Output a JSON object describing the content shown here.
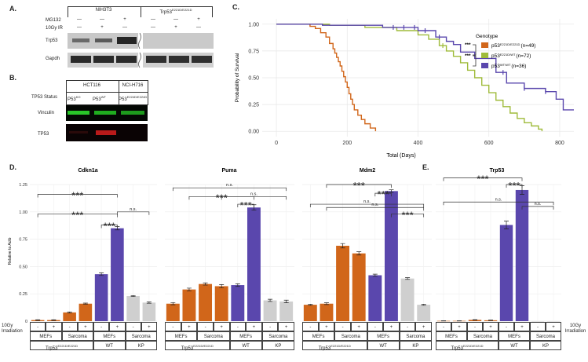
{
  "panel_labels": {
    "A": "A.",
    "B": "B.",
    "C": "C.",
    "D": "D.",
    "E": "E."
  },
  "panel_a": {
    "group_left": "NIH3T3",
    "group_right": "Trp53",
    "group_right_sup": "E221D/E221D",
    "row_labels": [
      "MG132",
      "10Gy IR",
      "Trp53",
      "Gapdh"
    ],
    "mg132": [
      "—",
      "—",
      "+",
      "—",
      "—",
      "+"
    ],
    "ir": [
      "—",
      "+",
      "—",
      "—",
      "+",
      "—"
    ]
  },
  "panel_b": {
    "col1": "HCT116",
    "col2": "NCI-H716",
    "status_label": "TP53 Status",
    "status": [
      {
        "base": "P53",
        "sup": "KO"
      },
      {
        "base": "P53",
        "sup": "WT"
      },
      {
        "base": "P53",
        "sup": "E224D/E224D"
      }
    ],
    "row_labels": [
      "Vinculin",
      "TP53"
    ]
  },
  "chart_data": [
    {
      "type": "line",
      "id": "survival",
      "xlabel": "Total (Days)",
      "ylabel": "Probability of Survival",
      "xlim": [
        -40,
        840
      ],
      "ylim": [
        -0.05,
        1.05
      ],
      "xticks": [
        0,
        200,
        400,
        600,
        800
      ],
      "yticks": [
        0.0,
        0.25,
        0.5,
        0.75,
        1.0
      ],
      "ytick_labels": [
        "0.00",
        "0.25",
        "0.50",
        "0.75",
        "1.00"
      ],
      "legend_title": "Genotype",
      "significance": [
        "***",
        "***"
      ],
      "series": [
        {
          "name": "p53",
          "sup": "E221D/E221D",
          "n": "(n=49)",
          "color": "#d1661a",
          "x": [
            0,
            95,
            110,
            125,
            140,
            150,
            160,
            165,
            170,
            175,
            180,
            185,
            190,
            195,
            200,
            205,
            210,
            215,
            220,
            230,
            240,
            250,
            265,
            280
          ],
          "y": [
            1.0,
            0.98,
            0.96,
            0.92,
            0.88,
            0.82,
            0.77,
            0.73,
            0.69,
            0.65,
            0.61,
            0.56,
            0.51,
            0.46,
            0.41,
            0.35,
            0.3,
            0.25,
            0.2,
            0.15,
            0.11,
            0.07,
            0.03,
            0.0
          ]
        },
        {
          "name": "p53",
          "sup": "E221D/WT",
          "n": "(n=72)",
          "color": "#9fbb3a",
          "x": [
            0,
            150,
            250,
            340,
            400,
            430,
            460,
            480,
            500,
            520,
            540,
            560,
            580,
            600,
            620,
            640,
            660,
            680,
            700,
            720,
            740,
            750
          ],
          "y": [
            1.0,
            0.99,
            0.97,
            0.94,
            0.9,
            0.86,
            0.8,
            0.75,
            0.7,
            0.64,
            0.57,
            0.5,
            0.43,
            0.36,
            0.29,
            0.23,
            0.17,
            0.12,
            0.08,
            0.05,
            0.02,
            0.0
          ]
        },
        {
          "name": "p53",
          "sup": "WT/WT",
          "n": "(n=36)",
          "color": "#5a47ad",
          "x": [
            0,
            130,
            300,
            400,
            450,
            480,
            500,
            520,
            560,
            620,
            650,
            700,
            760,
            790,
            810,
            840
          ],
          "y": [
            1.0,
            0.99,
            0.97,
            0.94,
            0.88,
            0.84,
            0.81,
            0.74,
            0.68,
            0.55,
            0.45,
            0.4,
            0.37,
            0.3,
            0.2,
            0.2
          ]
        }
      ]
    },
    {
      "type": "bar",
      "id": "cdkn1a",
      "title": "Cdkn1a",
      "ylabel": "Relative to Actb",
      "ylim": [
        0,
        1.25
      ],
      "yticks": [
        0,
        0.25,
        0.5,
        0.75,
        1.0,
        1.25
      ],
      "ytick_labels": [
        "0",
        "0.25",
        "0.50",
        "0.75",
        "1.00",
        "1.25"
      ],
      "categories": [
        "MEFs-",
        "MEFs+",
        "Sarcoma-",
        "Sarcoma+",
        "MEFs-",
        "MEFs+",
        "Sarcoma-",
        "Sarcoma+"
      ],
      "values": [
        0.01,
        0.01,
        0.08,
        0.16,
        0.43,
        0.85,
        0.23,
        0.17
      ],
      "errors": [
        0.003,
        0.003,
        0.005,
        0.005,
        0.012,
        0.015,
        0.005,
        0.006
      ],
      "colors": [
        "#d1661a",
        "#d1661a",
        "#d1661a",
        "#d1661a",
        "#5a47ad",
        "#5a47ad",
        "#cfcfcf",
        "#cfcfcf"
      ],
      "brackets": [
        {
          "from": 0,
          "to": 5,
          "y": 1.16,
          "label": "***"
        },
        {
          "from": 0,
          "to": 5,
          "y": 0.98,
          "label": "***"
        },
        {
          "from": 4,
          "to": 5,
          "y": 0.88,
          "label": "***"
        },
        {
          "from": 5,
          "to": 7,
          "y": 1.0,
          "label": "n.s."
        }
      ]
    },
    {
      "type": "bar",
      "id": "puma",
      "title": "Puma",
      "ylim": [
        0,
        1.25
      ],
      "yticks": [
        0,
        0.25,
        0.5,
        0.75,
        1.0,
        1.25
      ],
      "categories": [
        "MEFs-",
        "MEFs+",
        "Sarcoma-",
        "Sarcoma+",
        "MEFs-",
        "MEFs+",
        "Sarcoma-",
        "Sarcoma+"
      ],
      "values": [
        0.16,
        0.29,
        0.34,
        0.32,
        0.33,
        1.04,
        0.19,
        0.18
      ],
      "errors": [
        0.01,
        0.012,
        0.01,
        0.015,
        0.012,
        0.025,
        0.01,
        0.012
      ],
      "colors": [
        "#d1661a",
        "#d1661a",
        "#d1661a",
        "#d1661a",
        "#5a47ad",
        "#5a47ad",
        "#cfcfcf",
        "#cfcfcf"
      ],
      "brackets": [
        {
          "from": 0,
          "to": 7,
          "y": 1.22,
          "label": "n.s."
        },
        {
          "from": 1,
          "to": 5,
          "y": 1.14,
          "label": "***"
        },
        {
          "from": 4,
          "to": 5,
          "y": 1.07,
          "label": "***"
        },
        {
          "from": 3,
          "to": 7,
          "y": 1.14,
          "label": "n.s."
        }
      ]
    },
    {
      "type": "bar",
      "id": "mdm2",
      "title": "Mdm2",
      "ylim": [
        0,
        1.25
      ],
      "yticks": [
        0,
        0.25,
        0.5,
        0.75,
        1.0,
        1.25
      ],
      "categories": [
        "MEFs-",
        "MEFs+",
        "Sarcoma-",
        "Sarcoma+",
        "MEFs-",
        "MEFs+",
        "Sarcoma-",
        "Sarcoma+"
      ],
      "values": [
        0.15,
        0.16,
        0.69,
        0.62,
        0.42,
        1.19,
        0.39,
        0.15
      ],
      "errors": [
        0.005,
        0.008,
        0.02,
        0.015,
        0.01,
        0.012,
        0.008,
        0.005
      ],
      "colors": [
        "#d1661a",
        "#d1661a",
        "#d1661a",
        "#d1661a",
        "#5a47ad",
        "#5a47ad",
        "#cfcfcf",
        "#cfcfcf"
      ],
      "brackets": [
        {
          "from": 1,
          "to": 5,
          "y": 1.25,
          "label": "***"
        },
        {
          "from": 4,
          "to": 5,
          "y": 1.17,
          "label": "***"
        },
        {
          "from": 0,
          "to": 7,
          "y": 1.07,
          "label": "n.s."
        },
        {
          "from": 1,
          "to": 7,
          "y": 1.04,
          "label": "n.s."
        },
        {
          "from": 5,
          "to": 7,
          "y": 0.98,
          "label": "***"
        }
      ]
    },
    {
      "type": "bar",
      "id": "trp53",
      "title": "Trp53",
      "ylim": [
        0,
        1.25
      ],
      "yticks": [
        0,
        0.25,
        0.5,
        0.75,
        1.0,
        1.25
      ],
      "categories": [
        "MEFs-",
        "MEFs+",
        "Sarcoma-",
        "Sarcoma+",
        "MEFs-",
        "MEFs+",
        "Sarcoma-",
        "Sarcoma+"
      ],
      "values": [
        0.003,
        0.003,
        0.012,
        0.008,
        0.88,
        1.2,
        0.0,
        0.0
      ],
      "errors": [
        0.001,
        0.001,
        0.002,
        0.002,
        0.035,
        0.04,
        0.0,
        0.0
      ],
      "colors": [
        "#d1661a",
        "#d1661a",
        "#d1661a",
        "#d1661a",
        "#5a47ad",
        "#5a47ad",
        "#cfcfcf",
        "#cfcfcf"
      ],
      "brackets": [
        {
          "from": 0,
          "to": 5,
          "y": 1.31,
          "label": "***"
        },
        {
          "from": 4,
          "to": 5,
          "y": 1.25,
          "label": "***"
        },
        {
          "from": 0,
          "to": 7,
          "y": 1.09,
          "label": "n.s."
        },
        {
          "from": 5,
          "to": 7,
          "y": 1.05,
          "label": "n.s."
        }
      ]
    }
  ],
  "table": {
    "row1_label": [
      "10Gy",
      "Irradiation"
    ],
    "row1_label_right": [
      "10Gy",
      "Irradiation"
    ],
    "signs": [
      "-",
      "+",
      "-",
      "+",
      "-",
      "+",
      "-",
      "+"
    ],
    "cell_types": [
      "MEFs",
      "Sarcoma",
      "MEFs",
      "Sarcoma"
    ],
    "genotype_mut": "Trp53",
    "genotype_mut_sup": "E221D/E221D",
    "genotype_wt": "WT",
    "genotype_kp": "KP"
  }
}
